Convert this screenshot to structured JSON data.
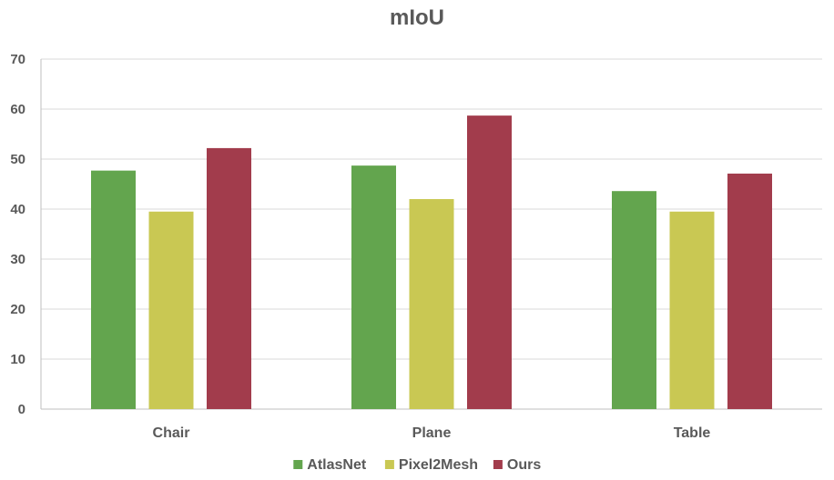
{
  "chart_data": {
    "type": "bar",
    "title": "mIoU",
    "xlabel": "",
    "ylabel": "",
    "categories": [
      "Chair",
      "Plane",
      "Table"
    ],
    "series": [
      {
        "name": "AtlasNet",
        "values": [
          47.7,
          48.7,
          43.6
        ],
        "color": "#63a54e"
      },
      {
        "name": "Pixel2Mesh",
        "values": [
          39.5,
          42.0,
          39.5
        ],
        "color": "#c9c853"
      },
      {
        "name": "Ours",
        "values": [
          52.2,
          58.7,
          47.1
        ],
        "color": "#a23c4c"
      }
    ],
    "ylim": [
      0,
      70
    ],
    "yticks": [
      0,
      10,
      20,
      30,
      40,
      50,
      60,
      70
    ],
    "grid": true,
    "legend_position": "bottom"
  }
}
